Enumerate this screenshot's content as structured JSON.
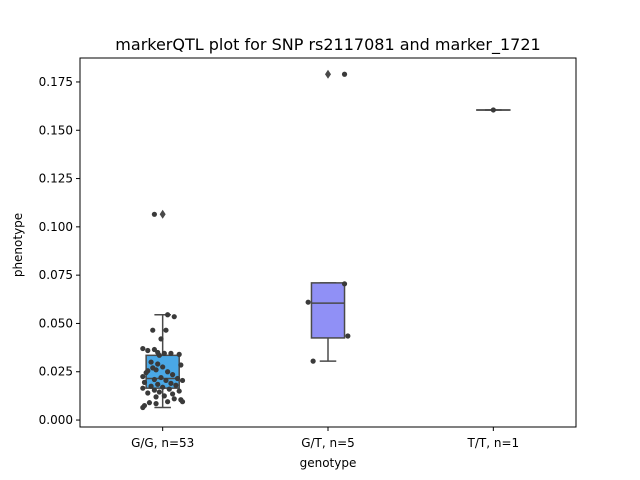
{
  "chart_data": {
    "type": "box",
    "title": "markerQTL plot for SNP rs2117081 and marker_1721",
    "xlabel": "genotype",
    "ylabel": "phenotype",
    "categories": [
      "G/G, n=53",
      "G/T, n=5",
      "T/T, n=1"
    ],
    "ylim": [
      -0.0036,
      0.1874
    ],
    "yticks": [
      0.0,
      0.025,
      0.05,
      0.075,
      0.1,
      0.125,
      0.15,
      0.175
    ],
    "ytick_labels": [
      "0.000",
      "0.025",
      "0.050",
      "0.075",
      "0.100",
      "0.125",
      "0.150",
      "0.175"
    ],
    "grid": false,
    "colors": {
      "G/G": "#4aa8e6",
      "G/T": "#9090f6",
      "T/T": "#9a6ee8",
      "box_edge": "#4a4a4a",
      "points": "#3a3a3a"
    },
    "boxes": [
      {
        "category": "G/G, n=53",
        "q1": 0.0165,
        "median": 0.0215,
        "q3": 0.0335,
        "whisker_low": 0.0065,
        "whisker_high": 0.0545,
        "outliers": [
          0.1065
        ]
      },
      {
        "category": "G/T, n=5",
        "q1": 0.0425,
        "median": 0.0605,
        "q3": 0.071,
        "whisker_low": 0.0305,
        "whisker_high": 0.071,
        "outliers": [
          0.179
        ]
      },
      {
        "category": "T/T, n=1",
        "q1": 0.1605,
        "median": 0.1605,
        "q3": 0.1605,
        "whisker_low": 0.1605,
        "whisker_high": 0.1605,
        "outliers": []
      }
    ],
    "points": [
      {
        "group": 0,
        "y": 0.1065,
        "jit": -0.05
      },
      {
        "group": 0,
        "y": 0.0545,
        "jit": 0.03
      },
      {
        "group": 0,
        "y": 0.0535,
        "jit": 0.07
      },
      {
        "group": 0,
        "y": 0.0465,
        "jit": -0.06
      },
      {
        "group": 0,
        "y": 0.0465,
        "jit": 0.02
      },
      {
        "group": 0,
        "y": 0.042,
        "jit": -0.01
      },
      {
        "group": 0,
        "y": 0.037,
        "jit": -0.12
      },
      {
        "group": 0,
        "y": 0.036,
        "jit": -0.09
      },
      {
        "group": 0,
        "y": 0.0365,
        "jit": -0.05
      },
      {
        "group": 0,
        "y": 0.035,
        "jit": -0.03
      },
      {
        "group": 0,
        "y": 0.0345,
        "jit": 0.01
      },
      {
        "group": 0,
        "y": 0.0345,
        "jit": 0.05
      },
      {
        "group": 0,
        "y": 0.034,
        "jit": 0.1
      },
      {
        "group": 0,
        "y": 0.0335,
        "jit": -0.02
      },
      {
        "group": 0,
        "y": 0.03,
        "jit": -0.07
      },
      {
        "group": 0,
        "y": 0.029,
        "jit": -0.03
      },
      {
        "group": 0,
        "y": 0.0285,
        "jit": 0.11
      },
      {
        "group": 0,
        "y": 0.0275,
        "jit": 0.0
      },
      {
        "group": 0,
        "y": 0.027,
        "jit": -0.06
      },
      {
        "group": 0,
        "y": 0.026,
        "jit": -0.04
      },
      {
        "group": 0,
        "y": 0.0255,
        "jit": -0.09
      },
      {
        "group": 0,
        "y": 0.025,
        "jit": 0.03
      },
      {
        "group": 0,
        "y": 0.0245,
        "jit": -0.1
      },
      {
        "group": 0,
        "y": 0.0235,
        "jit": 0.06
      },
      {
        "group": 0,
        "y": 0.0225,
        "jit": -0.12
      },
      {
        "group": 0,
        "y": 0.022,
        "jit": -0.01
      },
      {
        "group": 0,
        "y": 0.0215,
        "jit": 0.09
      },
      {
        "group": 0,
        "y": 0.021,
        "jit": -0.05
      },
      {
        "group": 0,
        "y": 0.0205,
        "jit": 0.02
      },
      {
        "group": 0,
        "y": 0.0205,
        "jit": 0.12
      },
      {
        "group": 0,
        "y": 0.0195,
        "jit": -0.11
      },
      {
        "group": 0,
        "y": 0.019,
        "jit": 0.05
      },
      {
        "group": 0,
        "y": 0.0185,
        "jit": -0.03
      },
      {
        "group": 0,
        "y": 0.018,
        "jit": 0.08
      },
      {
        "group": 0,
        "y": 0.0175,
        "jit": -0.07
      },
      {
        "group": 0,
        "y": 0.017,
        "jit": 0.0
      },
      {
        "group": 0,
        "y": 0.0165,
        "jit": -0.12
      },
      {
        "group": 0,
        "y": 0.016,
        "jit": 0.04
      },
      {
        "group": 0,
        "y": 0.0155,
        "jit": -0.05
      },
      {
        "group": 0,
        "y": 0.015,
        "jit": 0.1
      },
      {
        "group": 0,
        "y": 0.0145,
        "jit": -0.02
      },
      {
        "group": 0,
        "y": 0.014,
        "jit": -0.09
      },
      {
        "group": 0,
        "y": 0.0135,
        "jit": 0.06
      },
      {
        "group": 0,
        "y": 0.0125,
        "jit": 0.01
      },
      {
        "group": 0,
        "y": 0.012,
        "jit": -0.04
      },
      {
        "group": 0,
        "y": 0.011,
        "jit": 0.07
      },
      {
        "group": 0,
        "y": 0.0105,
        "jit": 0.11
      },
      {
        "group": 0,
        "y": 0.0095,
        "jit": 0.12
      },
      {
        "group": 0,
        "y": 0.009,
        "jit": -0.08
      },
      {
        "group": 0,
        "y": 0.0085,
        "jit": -0.04
      },
      {
        "group": 0,
        "y": 0.0075,
        "jit": -0.11
      },
      {
        "group": 0,
        "y": 0.0065,
        "jit": -0.12
      },
      {
        "group": 0,
        "y": 0.0095,
        "jit": 0.03
      },
      {
        "group": 1,
        "y": 0.179,
        "jit": 0.1
      },
      {
        "group": 1,
        "y": 0.0705,
        "jit": 0.1
      },
      {
        "group": 1,
        "y": 0.061,
        "jit": -0.12
      },
      {
        "group": 1,
        "y": 0.0435,
        "jit": 0.12
      },
      {
        "group": 1,
        "y": 0.0305,
        "jit": -0.09
      },
      {
        "group": 2,
        "y": 0.1605,
        "jit": 0.0
      }
    ]
  }
}
